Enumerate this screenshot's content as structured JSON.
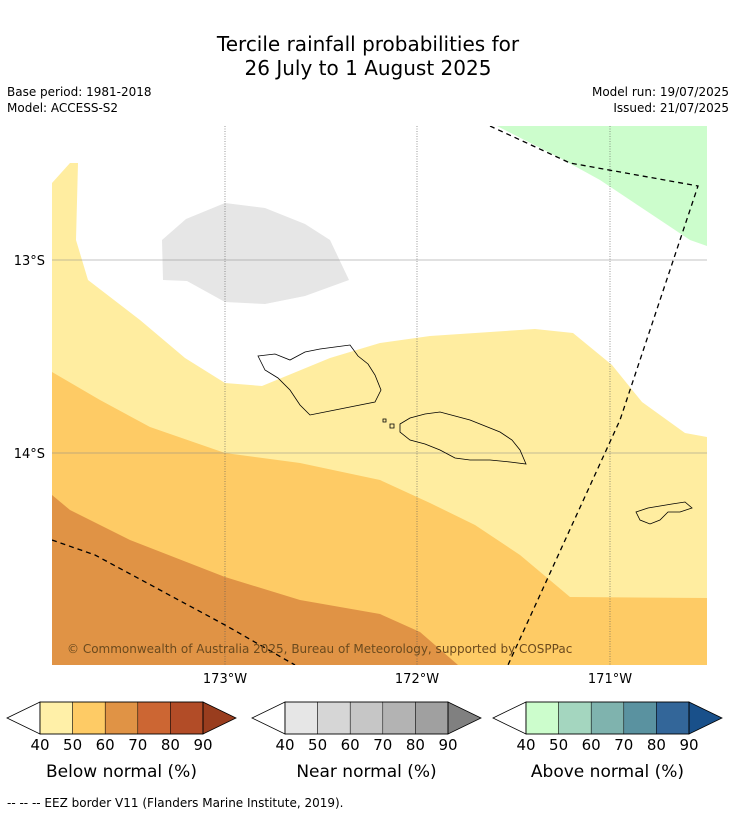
{
  "header": {
    "title_line1": "Tercile rainfall probabilities for",
    "title_line2": "26 July to 1 August 2025",
    "base_period": "Base period: 1981-2018",
    "model": "Model: ACCESS-S2",
    "model_run": "Model run: 19/07/2025",
    "issued": "Issued: 21/07/2025"
  },
  "map": {
    "lat_labels": [
      "13°S",
      "14°S"
    ],
    "lon_labels": [
      "173°W",
      "172°W",
      "171°W"
    ],
    "copyright": "© Commonwealth of Australia 2025, Bureau of Meteorology, supported by COSPPac",
    "colors": {
      "below_40": "#ffeda0",
      "below_50": "#fecb65",
      "below_60": "#e09345",
      "near_40": "#e6e6e6",
      "above_40": "#ccfdcc",
      "ocean": "#ffffff"
    }
  },
  "colorbars": [
    {
      "name": "below",
      "label": "Below normal (%)",
      "ticks": [
        "40",
        "50",
        "60",
        "70",
        "80",
        "90"
      ],
      "colors": [
        "#fff0a8",
        "#fecb65",
        "#e09345",
        "#cc6633",
        "#b24c27",
        "#993d1e"
      ]
    },
    {
      "name": "near",
      "label": "Near normal (%)",
      "ticks": [
        "40",
        "50",
        "60",
        "70",
        "80",
        "90"
      ],
      "colors": [
        "#e6e6e6",
        "#d6d6d6",
        "#c6c6c6",
        "#b3b3b3",
        "#a0a0a0",
        "#808080"
      ]
    },
    {
      "name": "above",
      "label": "Above normal (%)",
      "ticks": [
        "40",
        "50",
        "60",
        "70",
        "80",
        "90"
      ],
      "colors": [
        "#ccfdcc",
        "#a4d6bf",
        "#7fb3ae",
        "#5a92a0",
        "#336699",
        "#19508a"
      ]
    }
  ],
  "footer": "--  --  -- EEZ border V11 (Flanders Marine Institute, 2019)."
}
